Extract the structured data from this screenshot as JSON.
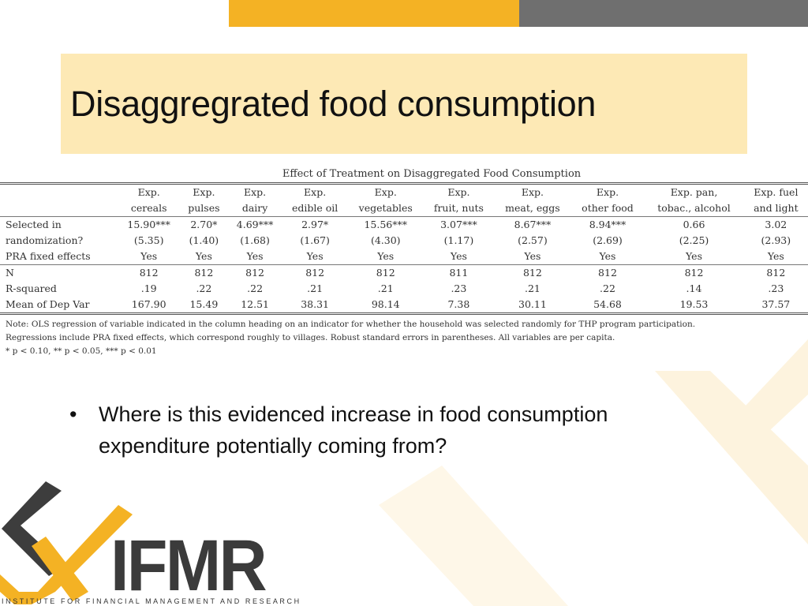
{
  "slide": {
    "title": "Disaggregrated food consumption",
    "bullet": "Where is this evidenced increase in food consumption expenditure potentially coming from?",
    "bullet_symbol": "•"
  },
  "table": {
    "caption": "Effect of Treatment on Disaggregated Food Consumption",
    "header_top": [
      "Exp.",
      "Exp.",
      "Exp.",
      "Exp.",
      "Exp.",
      "Exp.",
      "Exp.",
      "Exp.",
      "Exp. pan,",
      "Exp. fuel"
    ],
    "header_bottom": [
      "cereals",
      "pulses",
      "dairy",
      "edible oil",
      "vegetables",
      "fruit, nuts",
      "meat, eggs",
      "other food",
      "tobac., alcohol",
      "and light"
    ],
    "rows": [
      {
        "label": "Selected in",
        "cells": [
          "15.90***",
          "2.70*",
          "4.69***",
          "2.97*",
          "15.56***",
          "3.07***",
          "8.67***",
          "8.94***",
          "0.66",
          "3.02"
        ]
      },
      {
        "label": "randomization?",
        "cells": [
          "(5.35)",
          "(1.40)",
          "(1.68)",
          "(1.67)",
          "(4.30)",
          "(1.17)",
          "(2.57)",
          "(2.69)",
          "(2.25)",
          "(2.93)"
        ]
      },
      {
        "label": "PRA fixed effects",
        "cells": [
          "Yes",
          "Yes",
          "Yes",
          "Yes",
          "Yes",
          "Yes",
          "Yes",
          "Yes",
          "Yes",
          "Yes"
        ]
      },
      {
        "label": "N",
        "cells": [
          "812",
          "812",
          "812",
          "812",
          "812",
          "811",
          "812",
          "812",
          "812",
          "812"
        ]
      },
      {
        "label": "R-squared",
        "cells": [
          ".19",
          ".22",
          ".22",
          ".21",
          ".21",
          ".23",
          ".21",
          ".22",
          ".14",
          ".23"
        ]
      },
      {
        "label": "Mean of Dep Var",
        "cells": [
          "167.90",
          "15.49",
          "12.51",
          "38.31",
          "98.14",
          "7.38",
          "30.11",
          "54.68",
          "19.53",
          "37.57"
        ]
      }
    ],
    "notes": [
      "Note: OLS regression of variable indicated in the column heading on an indicator for whether the household was selected randomly for THP program participation.",
      "Regressions include PRA fixed effects, which correspond roughly to villages. Robust standard errors in parentheses. All variables are per capita.",
      "* p < 0.10, ** p < 0.05, *** p < 0.01"
    ]
  },
  "logo": {
    "wordmark": "IFMR",
    "tagline": "INSTITUTE FOR FINANCIAL MANAGEMENT AND RESEARCH"
  },
  "colors": {
    "accent_yellow": "#f4b224",
    "accent_gray": "#6f6f6f",
    "title_bg": "#fde9b5"
  }
}
